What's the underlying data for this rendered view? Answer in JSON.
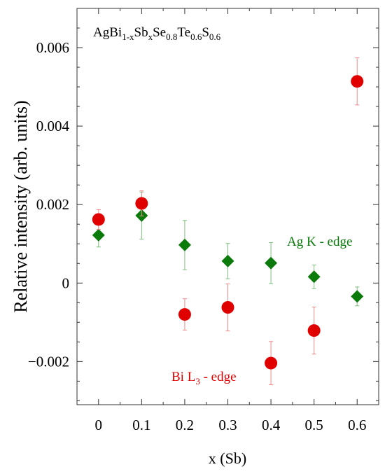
{
  "chart_data": {
    "type": "scatter",
    "title": "",
    "xlabel": "x (Sb)",
    "ylabel": "Relative intensity (arb. units)",
    "xlim": [
      -0.05,
      0.65
    ],
    "ylim": [
      -0.0031,
      0.007
    ],
    "xticks": [
      {
        "value": 0,
        "label": "0"
      },
      {
        "value": 0.1,
        "label": "0.1"
      },
      {
        "value": 0.2,
        "label": "0.2"
      },
      {
        "value": 0.3,
        "label": "0.3"
      },
      {
        "value": 0.4,
        "label": "0.4"
      },
      {
        "value": 0.5,
        "label": "0.5"
      },
      {
        "value": 0.6,
        "label": "0.6"
      }
    ],
    "yticks": [
      {
        "value": -0.002,
        "label": "−0.002"
      },
      {
        "value": 0,
        "label": "0"
      },
      {
        "value": 0.002,
        "label": "0.002"
      },
      {
        "value": 0.004,
        "label": "0.004"
      },
      {
        "value": 0.006,
        "label": "0.006"
      }
    ],
    "grid": false,
    "series": [
      {
        "name": "Ag K - edge",
        "color": "#0a7a0a",
        "marker": "diamond",
        "points": [
          {
            "x": 0,
            "y": 0.00122,
            "err": 0.0003
          },
          {
            "x": 0.1,
            "y": 0.00172,
            "err": 0.0006
          },
          {
            "x": 0.2,
            "y": 0.00097,
            "err": 0.00063
          },
          {
            "x": 0.3,
            "y": 0.00056,
            "err": 0.00045
          },
          {
            "x": 0.4,
            "y": 0.00051,
            "err": 0.00052
          },
          {
            "x": 0.5,
            "y": 0.00016,
            "err": 0.0003
          },
          {
            "x": 0.6,
            "y": -0.00034,
            "err": 0.00024
          }
        ]
      },
      {
        "name": "Bi L3 - edge",
        "color": "#e00000",
        "marker": "circle",
        "points": [
          {
            "x": 0,
            "y": 0.00162,
            "err": 0.00025
          },
          {
            "x": 0.1,
            "y": 0.00203,
            "err": 0.00032
          },
          {
            "x": 0.2,
            "y": -0.0008,
            "err": 0.0004
          },
          {
            "x": 0.3,
            "y": -0.00062,
            "err": 0.0006
          },
          {
            "x": 0.4,
            "y": -0.00204,
            "err": 0.00055
          },
          {
            "x": 0.5,
            "y": -0.00121,
            "err": 0.0006
          },
          {
            "x": 0.6,
            "y": 0.00514,
            "err": 0.0006
          }
        ]
      }
    ],
    "annotations": {
      "formula": {
        "parts": [
          "AgBi",
          "1-x",
          "Sb",
          "x",
          "Se",
          "0.8",
          "Te",
          "0.6",
          "S",
          "0.6"
        ]
      },
      "ag_label": "Ag K - edge",
      "bi_label_main": "Bi L",
      "bi_label_sub": "3",
      "bi_label_tail": " - edge"
    }
  }
}
